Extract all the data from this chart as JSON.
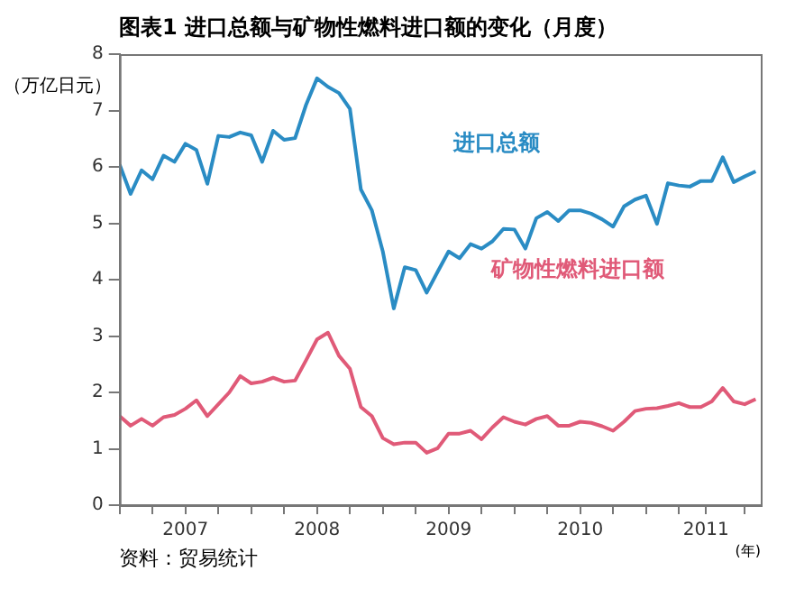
{
  "chart_data": {
    "type": "line",
    "title": "图表1 进口总额与矿物性燃料进口额的变化（月度）",
    "ylabel": "（万亿日元）",
    "xlabel": "(年)",
    "annotations": [
      "资料：贸易统计"
    ],
    "x": [
      "2007-01",
      "2007-02",
      "2007-03",
      "2007-04",
      "2007-05",
      "2007-06",
      "2007-07",
      "2007-08",
      "2007-09",
      "2007-10",
      "2007-11",
      "2007-12",
      "2008-01",
      "2008-02",
      "2008-03",
      "2008-04",
      "2008-05",
      "2008-06",
      "2008-07",
      "2008-08",
      "2008-09",
      "2008-10",
      "2008-11",
      "2008-12",
      "2009-01",
      "2009-02",
      "2009-03",
      "2009-04",
      "2009-05",
      "2009-06",
      "2009-07",
      "2009-08",
      "2009-09",
      "2009-10",
      "2009-11",
      "2009-12",
      "2010-01",
      "2010-02",
      "2010-03",
      "2010-04",
      "2010-05",
      "2010-06",
      "2010-07",
      "2010-08",
      "2010-09",
      "2010-10",
      "2010-11",
      "2010-12",
      "2011-01",
      "2011-02",
      "2011-03",
      "2011-04",
      "2011-05",
      "2011-06",
      "2011-07",
      "2011-08",
      "2011-09",
      "2011-10",
      "2011-11"
    ],
    "series": [
      {
        "name": "进口总额",
        "color": "#2a8cc4",
        "values": [
          6.04,
          5.52,
          5.94,
          5.78,
          6.2,
          6.09,
          6.41,
          6.3,
          5.7,
          6.55,
          6.53,
          6.61,
          6.56,
          6.09,
          6.64,
          6.48,
          6.51,
          7.1,
          7.57,
          7.42,
          7.31,
          7.03,
          5.6,
          5.23,
          4.5,
          3.49,
          4.22,
          4.17,
          3.77,
          4.14,
          4.5,
          4.38,
          4.63,
          4.55,
          4.68,
          4.9,
          4.89,
          4.55,
          5.09,
          5.2,
          5.04,
          5.23,
          5.23,
          5.17,
          5.07,
          4.94,
          5.3,
          5.42,
          5.49,
          4.99,
          5.71,
          5.67,
          5.65,
          5.75,
          5.75,
          6.17,
          5.73,
          5.83,
          5.92
        ]
      },
      {
        "name": "矿物性燃料进口额",
        "color": "#e05a78",
        "values": [
          1.58,
          1.41,
          1.53,
          1.41,
          1.56,
          1.6,
          1.71,
          1.86,
          1.58,
          1.79,
          2.0,
          2.29,
          2.16,
          2.19,
          2.26,
          2.19,
          2.21,
          2.57,
          2.94,
          3.06,
          2.65,
          2.42,
          1.74,
          1.58,
          1.19,
          1.08,
          1.11,
          1.11,
          0.93,
          1.01,
          1.27,
          1.27,
          1.32,
          1.17,
          1.38,
          1.56,
          1.48,
          1.43,
          1.53,
          1.58,
          1.41,
          1.41,
          1.48,
          1.46,
          1.4,
          1.32,
          1.48,
          1.67,
          1.71,
          1.72,
          1.76,
          1.81,
          1.74,
          1.74,
          1.84,
          2.08,
          1.84,
          1.79,
          1.88
        ]
      }
    ],
    "xlim": [
      "2007-01",
      "2011-11-15"
    ],
    "xticks": [
      {
        "value": "2007-01",
        "label": null
      },
      {
        "value": "2007-04",
        "label": null
      },
      {
        "value": "2007-07",
        "label": "2007"
      },
      {
        "value": "2007-10",
        "label": null
      },
      {
        "value": "2008-01",
        "label": null
      },
      {
        "value": "2008-04",
        "label": null
      },
      {
        "value": "2008-07",
        "label": "2008"
      },
      {
        "value": "2008-10",
        "label": null
      },
      {
        "value": "2009-01",
        "label": null
      },
      {
        "value": "2009-04",
        "label": null
      },
      {
        "value": "2009-07",
        "label": "2009"
      },
      {
        "value": "2009-10",
        "label": null
      },
      {
        "value": "2010-01",
        "label": null
      },
      {
        "value": "2010-04",
        "label": null
      },
      {
        "value": "2010-07",
        "label": "2010"
      },
      {
        "value": "2010-10",
        "label": null
      },
      {
        "value": "2011-01",
        "label": null
      },
      {
        "value": "2011-04",
        "label": null
      },
      {
        "value": "2011-06-15",
        "label": "2011"
      },
      {
        "value": "2011-10",
        "label": null
      }
    ],
    "ylim": [
      0,
      8
    ],
    "yticks": [
      0,
      1,
      2,
      3,
      4,
      5,
      6,
      7,
      8
    ],
    "grid": false,
    "legend": false
  }
}
